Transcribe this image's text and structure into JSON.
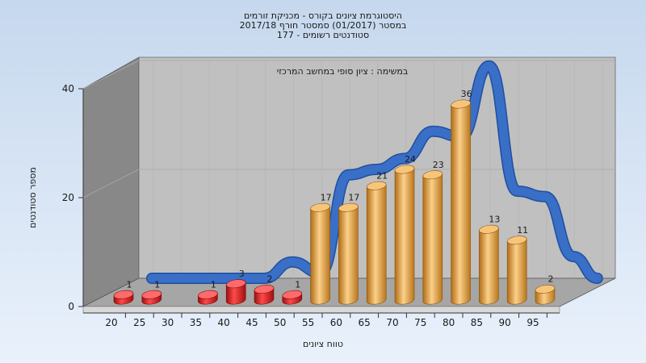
{
  "chart_data": {
    "type": "bar",
    "title_lines": [
      "היסטוגרמת ציונים בקורס - מכניקת זורמים",
      "במסטר  (01/2017)  סמסטר חורף  2017/18",
      "סטודנטים רשומים - 177"
    ],
    "subtitle": "במשימה : ציון סופי במחשב המרכזי",
    "xlabel": "טווח ציונים",
    "ylabel": "מספר סטודנטים",
    "ylim": [
      0,
      40
    ],
    "yticks": [
      0,
      20,
      40
    ],
    "categories": [
      "20",
      "25",
      "30",
      "35",
      "40",
      "45",
      "50",
      "55",
      "60",
      "65",
      "70",
      "75",
      "80",
      "85",
      "90",
      "95"
    ],
    "values": [
      1,
      1,
      null,
      1,
      3,
      2,
      1,
      17,
      17,
      21,
      24,
      23,
      36,
      13,
      11,
      2
    ],
    "data_labels": [
      "1",
      "1",
      "",
      "1",
      "3",
      "2",
      "1",
      "17",
      "17",
      "21",
      "24",
      "23",
      "36",
      "13",
      "11",
      "2"
    ],
    "bar_colors": [
      "#d81e1e",
      "#d81e1e",
      "#d81e1e",
      "#d81e1e",
      "#d81e1e",
      "#d81e1e",
      "#d81e1e",
      "#e0a040",
      "#e0a040",
      "#e0a040",
      "#e0a040",
      "#e0a040",
      "#e0a040",
      "#e0a040",
      "#e0a040",
      "#e0a040"
    ],
    "curve_color": "#3a6fc8",
    "curve_values": [
      0,
      0,
      0,
      0,
      0,
      3,
      1,
      19,
      20,
      22,
      27,
      26,
      39,
      16,
      15,
      4
    ],
    "grid": true
  }
}
